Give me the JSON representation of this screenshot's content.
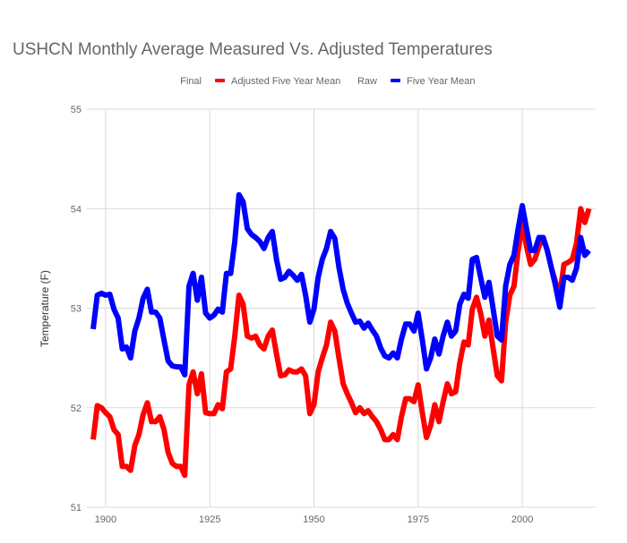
{
  "chart_data": {
    "type": "line",
    "title": "USHCN Monthly Average Measured Vs. Adjusted Temperatures",
    "xlabel": "",
    "ylabel": "Temperature (F)",
    "xlim": [
      1895.5,
      2017.6
    ],
    "ylim": [
      51,
      55
    ],
    "x_ticks": [
      "1900",
      "1925",
      "1950",
      "1975",
      "2000"
    ],
    "x_tick_values": [
      1900,
      1925,
      1950,
      1975,
      2000
    ],
    "y_ticks": [
      "51",
      "52",
      "53",
      "54",
      "55"
    ],
    "y_tick_values": [
      51,
      52,
      53,
      54,
      55
    ],
    "grid": true,
    "legend_position": "top",
    "legend": [
      {
        "group": "Final",
        "name": "Adjusted Five Year Mean",
        "color": "#ff0000"
      },
      {
        "group": "Raw",
        "name": "Five Year Mean",
        "color": "#0000ff"
      }
    ],
    "x": [
      1897,
      1898,
      1899,
      1900,
      1901,
      1902,
      1903,
      1904,
      1905,
      1906,
      1907,
      1908,
      1909,
      1910,
      1911,
      1912,
      1913,
      1914,
      1915,
      1916,
      1917,
      1918,
      1919,
      1920,
      1921,
      1922,
      1923,
      1924,
      1925,
      1926,
      1927,
      1928,
      1929,
      1930,
      1931,
      1932,
      1933,
      1934,
      1935,
      1936,
      1937,
      1938,
      1939,
      1940,
      1941,
      1942,
      1943,
      1944,
      1945,
      1946,
      1947,
      1948,
      1949,
      1950,
      1951,
      1952,
      1953,
      1954,
      1955,
      1956,
      1957,
      1958,
      1959,
      1960,
      1961,
      1962,
      1963,
      1964,
      1965,
      1966,
      1967,
      1968,
      1969,
      1970,
      1971,
      1972,
      1973,
      1974,
      1975,
      1976,
      1977,
      1978,
      1979,
      1980,
      1981,
      1982,
      1983,
      1984,
      1985,
      1986,
      1987,
      1988,
      1989,
      1990,
      1991,
      1992,
      1993,
      1994,
      1995,
      1996,
      1997,
      1998,
      1999,
      2000,
      2001,
      2002,
      2003,
      2004,
      2005,
      2006,
      2007,
      2008,
      2009,
      2010,
      2011,
      2012,
      2013,
      2014,
      2015,
      2016
    ],
    "series": [
      {
        "name": "Adjusted Five Year Mean",
        "color": "#ff0000",
        "values": [
          51.68,
          52.02,
          52.0,
          51.95,
          51.91,
          51.78,
          51.73,
          51.41,
          51.41,
          51.37,
          51.62,
          51.73,
          51.93,
          52.05,
          51.86,
          51.86,
          51.91,
          51.78,
          51.55,
          51.44,
          51.41,
          51.41,
          51.32,
          52.23,
          52.36,
          52.14,
          52.34,
          51.95,
          51.94,
          51.94,
          52.03,
          51.99,
          52.36,
          52.39,
          52.72,
          53.13,
          53.04,
          52.72,
          52.7,
          52.72,
          52.63,
          52.59,
          52.72,
          52.78,
          52.54,
          52.32,
          52.33,
          52.38,
          52.36,
          52.36,
          52.39,
          52.32,
          51.94,
          52.03,
          52.36,
          52.5,
          52.63,
          52.86,
          52.77,
          52.5,
          52.24,
          52.14,
          52.05,
          51.95,
          52.0,
          51.94,
          51.97,
          51.91,
          51.86,
          51.78,
          51.68,
          51.68,
          51.73,
          51.68,
          51.91,
          52.09,
          52.09,
          52.06,
          52.23,
          51.95,
          51.7,
          51.82,
          52.03,
          51.86,
          52.06,
          52.24,
          52.14,
          52.16,
          52.45,
          52.66,
          52.63,
          52.99,
          53.11,
          52.95,
          52.72,
          52.88,
          52.59,
          52.32,
          52.27,
          52.86,
          53.13,
          53.22,
          53.58,
          53.85,
          53.62,
          53.44,
          53.49,
          53.62,
          53.71,
          53.58,
          53.4,
          53.26,
          53.13,
          53.44,
          53.46,
          53.49,
          53.65,
          54.0,
          53.86,
          54.0
        ]
      },
      {
        "name": "Five Year Mean",
        "color": "#0000ff",
        "values": [
          52.79,
          53.13,
          53.15,
          53.13,
          53.14,
          52.99,
          52.9,
          52.59,
          52.61,
          52.5,
          52.77,
          52.9,
          53.1,
          53.19,
          52.96,
          52.96,
          52.9,
          52.68,
          52.47,
          52.42,
          52.41,
          52.41,
          52.33,
          53.22,
          53.35,
          53.08,
          53.31,
          52.95,
          52.9,
          52.93,
          52.99,
          52.96,
          53.35,
          53.35,
          53.67,
          54.14,
          54.07,
          53.8,
          53.74,
          53.71,
          53.67,
          53.6,
          53.71,
          53.77,
          53.49,
          53.29,
          53.31,
          53.37,
          53.33,
          53.28,
          53.34,
          53.13,
          52.86,
          52.99,
          53.31,
          53.49,
          53.6,
          53.77,
          53.7,
          53.41,
          53.19,
          53.05,
          52.95,
          52.86,
          52.87,
          52.8,
          52.85,
          52.78,
          52.72,
          52.6,
          52.52,
          52.5,
          52.55,
          52.5,
          52.69,
          52.84,
          52.84,
          52.77,
          52.95,
          52.68,
          52.39,
          52.5,
          52.69,
          52.54,
          52.72,
          52.86,
          52.72,
          52.77,
          53.04,
          53.14,
          53.1,
          53.49,
          53.51,
          53.31,
          53.11,
          53.26,
          52.99,
          52.72,
          52.68,
          53.22,
          53.44,
          53.53,
          53.8,
          54.03,
          53.8,
          53.58,
          53.58,
          53.71,
          53.71,
          53.58,
          53.4,
          53.22,
          53.01,
          53.31,
          53.31,
          53.28,
          53.4,
          53.71,
          53.53,
          53.58
        ]
      }
    ]
  }
}
